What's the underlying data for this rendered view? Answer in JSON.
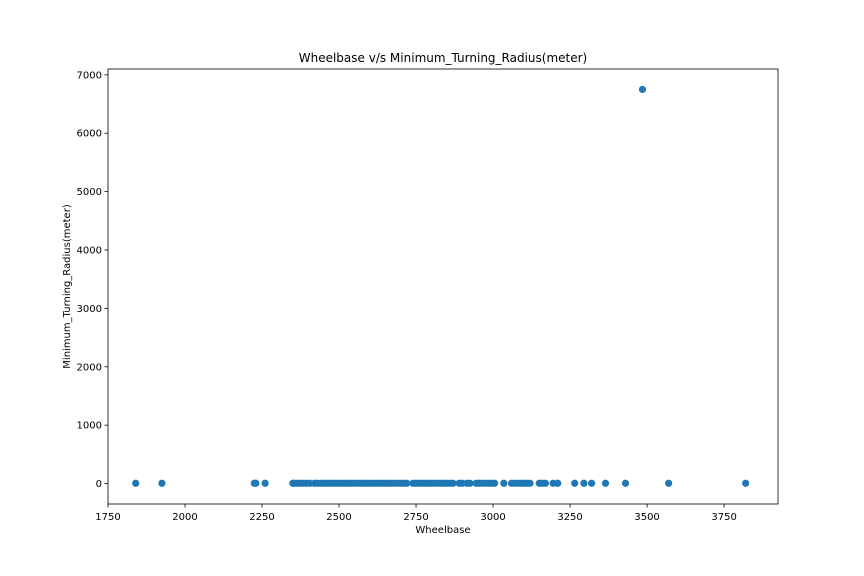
{
  "chart_data": {
    "type": "scatter",
    "title": "Wheelbase v/s Minimum_Turning_Radius(meter)",
    "xlabel": "Wheelbase",
    "ylabel": "Minimum_Turning_Radius(meter)",
    "xlim": [
      1750,
      3925
    ],
    "ylim": [
      -350,
      7100
    ],
    "xticks": [
      1750,
      2000,
      2250,
      2500,
      2750,
      3000,
      3250,
      3500,
      3750
    ],
    "yticks": [
      0,
      1000,
      2000,
      3000,
      4000,
      5000,
      6000,
      7000
    ],
    "grid": false,
    "legend": "none",
    "marker_color": "#1f77b4",
    "points": [
      {
        "x": 1840,
        "y": 5
      },
      {
        "x": 1925,
        "y": 5
      },
      {
        "x": 2225,
        "y": 5
      },
      {
        "x": 2230,
        "y": 5
      },
      {
        "x": 2260,
        "y": 5
      },
      {
        "x": 2350,
        "y": 5
      },
      {
        "x": 2355,
        "y": 5
      },
      {
        "x": 2365,
        "y": 5
      },
      {
        "x": 2375,
        "y": 5
      },
      {
        "x": 2385,
        "y": 5
      },
      {
        "x": 2395,
        "y": 5
      },
      {
        "x": 2405,
        "y": 5
      },
      {
        "x": 2420,
        "y": 5
      },
      {
        "x": 2430,
        "y": 5
      },
      {
        "x": 2440,
        "y": 5
      },
      {
        "x": 2450,
        "y": 5
      },
      {
        "x": 2460,
        "y": 5
      },
      {
        "x": 2470,
        "y": 5
      },
      {
        "x": 2480,
        "y": 5
      },
      {
        "x": 2490,
        "y": 5
      },
      {
        "x": 2500,
        "y": 5
      },
      {
        "x": 2510,
        "y": 5
      },
      {
        "x": 2520,
        "y": 5
      },
      {
        "x": 2530,
        "y": 5
      },
      {
        "x": 2540,
        "y": 5
      },
      {
        "x": 2550,
        "y": 5
      },
      {
        "x": 2560,
        "y": 5
      },
      {
        "x": 2570,
        "y": 5
      },
      {
        "x": 2580,
        "y": 5
      },
      {
        "x": 2590,
        "y": 5
      },
      {
        "x": 2600,
        "y": 5
      },
      {
        "x": 2610,
        "y": 5
      },
      {
        "x": 2620,
        "y": 5
      },
      {
        "x": 2630,
        "y": 5
      },
      {
        "x": 2640,
        "y": 5
      },
      {
        "x": 2650,
        "y": 5
      },
      {
        "x": 2660,
        "y": 5
      },
      {
        "x": 2670,
        "y": 5
      },
      {
        "x": 2680,
        "y": 5
      },
      {
        "x": 2690,
        "y": 5
      },
      {
        "x": 2700,
        "y": 5
      },
      {
        "x": 2710,
        "y": 5
      },
      {
        "x": 2720,
        "y": 5
      },
      {
        "x": 2740,
        "y": 5
      },
      {
        "x": 2750,
        "y": 5
      },
      {
        "x": 2760,
        "y": 5
      },
      {
        "x": 2770,
        "y": 5
      },
      {
        "x": 2780,
        "y": 5
      },
      {
        "x": 2790,
        "y": 5
      },
      {
        "x": 2800,
        "y": 5
      },
      {
        "x": 2810,
        "y": 5
      },
      {
        "x": 2820,
        "y": 5
      },
      {
        "x": 2830,
        "y": 5
      },
      {
        "x": 2840,
        "y": 5
      },
      {
        "x": 2850,
        "y": 5
      },
      {
        "x": 2860,
        "y": 5
      },
      {
        "x": 2870,
        "y": 5
      },
      {
        "x": 2890,
        "y": 5
      },
      {
        "x": 2900,
        "y": 5
      },
      {
        "x": 2915,
        "y": 5
      },
      {
        "x": 2925,
        "y": 5
      },
      {
        "x": 2945,
        "y": 5
      },
      {
        "x": 2955,
        "y": 5
      },
      {
        "x": 2965,
        "y": 5
      },
      {
        "x": 2975,
        "y": 5
      },
      {
        "x": 2985,
        "y": 5
      },
      {
        "x": 2995,
        "y": 5
      },
      {
        "x": 3005,
        "y": 5
      },
      {
        "x": 3035,
        "y": 5
      },
      {
        "x": 3060,
        "y": 5
      },
      {
        "x": 3070,
        "y": 5
      },
      {
        "x": 3080,
        "y": 5
      },
      {
        "x": 3090,
        "y": 5
      },
      {
        "x": 3100,
        "y": 5
      },
      {
        "x": 3110,
        "y": 5
      },
      {
        "x": 3120,
        "y": 5
      },
      {
        "x": 3150,
        "y": 5
      },
      {
        "x": 3160,
        "y": 5
      },
      {
        "x": 3170,
        "y": 5
      },
      {
        "x": 3195,
        "y": 5
      },
      {
        "x": 3210,
        "y": 5
      },
      {
        "x": 3265,
        "y": 5
      },
      {
        "x": 3295,
        "y": 5
      },
      {
        "x": 3320,
        "y": 5
      },
      {
        "x": 3365,
        "y": 5
      },
      {
        "x": 3430,
        "y": 5
      },
      {
        "x": 3570,
        "y": 5
      },
      {
        "x": 3820,
        "y": 5
      },
      {
        "x": 3485,
        "y": 6750
      }
    ]
  }
}
